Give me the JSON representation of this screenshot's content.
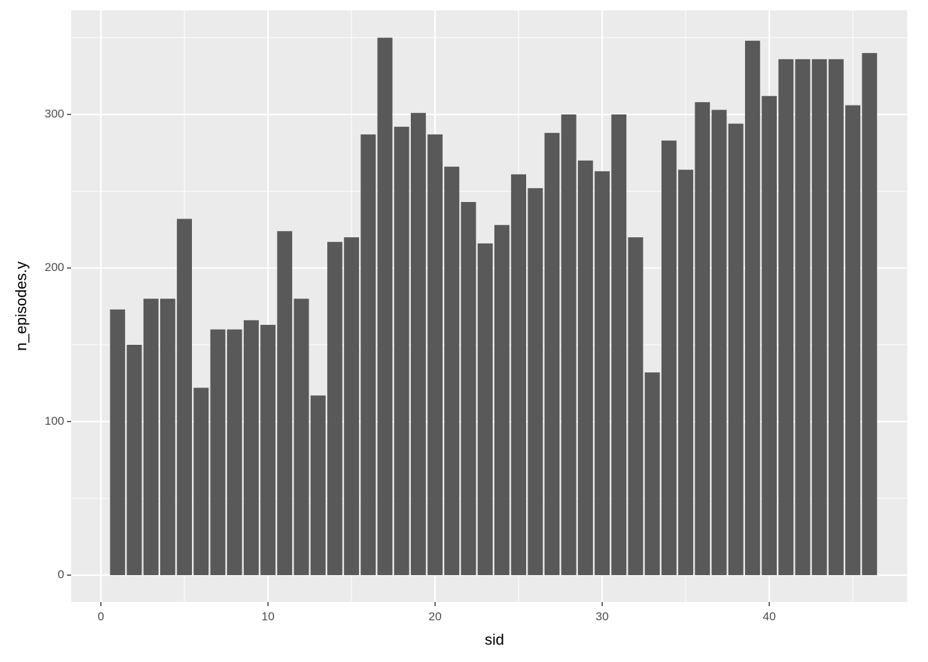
{
  "chart_data": {
    "type": "bar",
    "x_label": "sid",
    "y_label": "n_episodes.y",
    "x": [
      1,
      2,
      3,
      4,
      5,
      6,
      7,
      8,
      9,
      10,
      11,
      12,
      13,
      14,
      15,
      16,
      17,
      18,
      19,
      20,
      21,
      22,
      23,
      24,
      25,
      26,
      27,
      28,
      29,
      30,
      31,
      32,
      33,
      34,
      35,
      36,
      37,
      38,
      39,
      40,
      41,
      42,
      43,
      44,
      45,
      46
    ],
    "values": [
      173,
      150,
      180,
      180,
      232,
      122,
      160,
      160,
      166,
      163,
      224,
      180,
      117,
      217,
      220,
      287,
      350,
      292,
      301,
      287,
      266,
      243,
      216,
      228,
      261,
      252,
      288,
      300,
      270,
      263,
      300,
      220,
      132,
      283,
      264,
      308,
      303,
      294,
      348,
      312,
      336,
      336,
      336,
      336,
      306,
      340
    ],
    "color": "#595959",
    "xlim": [
      -1.78,
      48.26
    ],
    "xticks": [
      0,
      10,
      20,
      30,
      40
    ],
    "ylim": [
      -17.5,
      367.8
    ],
    "yticks": [
      0,
      100,
      200,
      300
    ],
    "grid": true
  }
}
